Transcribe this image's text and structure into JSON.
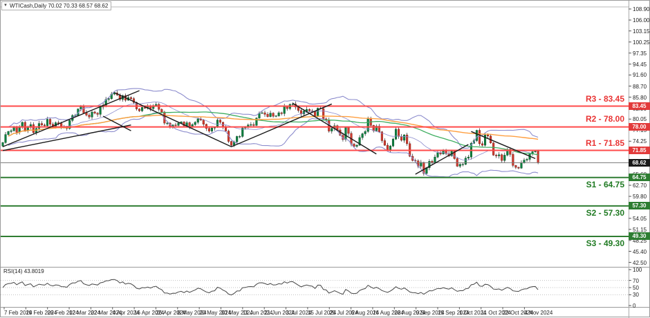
{
  "window": {
    "dropdown_icon": "triangle-down",
    "symbol_period": "WTICash,Daily",
    "ohlc_text": "70.02 70.33 68.57 68.62"
  },
  "colors": {
    "bull_candle": "#0d8040",
    "bull_border": "#0a5228",
    "bear_candle": "#d23b2f",
    "bear_border": "#7c1f16",
    "bollinger": "#8c8ccd",
    "sma_fast": "#3fae60",
    "sma_slow": "#ff9f40",
    "resistance_line": "#ff4a4a",
    "support_line": "#2f7d32",
    "current_price_line": "#777777",
    "trendline": "#1a1a1a",
    "resistance_badge": "#e23b3b",
    "support_badge": "#2e7d32",
    "current_badge": "#1a1a1a",
    "rsi_line": "#444444",
    "grid_dotted": "#c0c0c0",
    "separator": "#9a9a9a"
  },
  "levels": {
    "resistance": [
      {
        "name": "R3",
        "price": 83.45,
        "label": "R3 - 83.45"
      },
      {
        "name": "R2",
        "price": 78.0,
        "label": "R2 - 78.00"
      },
      {
        "name": "R1",
        "price": 71.85,
        "label": "R1 - 71.85"
      }
    ],
    "support": [
      {
        "name": "S1",
        "price": 64.75,
        "label": "S1 - 64.75"
      },
      {
        "name": "S2",
        "price": 57.3,
        "label": "S2 - 57.30"
      },
      {
        "name": "S3",
        "price": 49.3,
        "label": "S3 - 49.30"
      }
    ],
    "current_price": 68.62
  },
  "price_axis": {
    "ticks": [
      "108.90",
      "106.00",
      "103.15",
      "100.25",
      "97.35",
      "94.45",
      "91.60",
      "88.70",
      "85.80",
      "82.90",
      "80.05",
      "77.15",
      "74.25",
      "65.60",
      "62.70",
      "59.80",
      "54.05",
      "51.15",
      "48.25",
      "45.40",
      "42.50"
    ],
    "badges": [
      {
        "text": "83.45",
        "type": "resistance"
      },
      {
        "text": "78.00",
        "type": "resistance"
      },
      {
        "text": "71.85",
        "type": "resistance"
      },
      {
        "text": "68.62",
        "type": "current"
      },
      {
        "text": "64.75",
        "type": "support"
      },
      {
        "text": "57.30",
        "type": "support"
      },
      {
        "text": "49.30",
        "type": "support"
      }
    ]
  },
  "rsi_panel": {
    "label": "RSI(14) 43.8019",
    "scale_labels": [
      "100",
      "70",
      "50",
      "30",
      "0"
    ],
    "scale_values": [
      100,
      70,
      50,
      30,
      0
    ],
    "dotted_levels": [
      70,
      50,
      30
    ]
  },
  "time_axis": {
    "labels": [
      "7 Feb 2024",
      "19 Feb 2024",
      "29 Feb 2024",
      "12 Mar 2024",
      "22 Mar 2024",
      "4 Apr 2024",
      "16 Apr 2024",
      "26 Apr 2024",
      "8 May 2024",
      "20 May 2024",
      "30 May 2024",
      "11 Jun 2024",
      "21 Jun 2024",
      "3 Jul 2024",
      "15 Jul 2024",
      "25 Jul 2024",
      "6 Aug 2024",
      "16 Aug 2024",
      "28 Aug 2024",
      "9 Sep 2024",
      "19 Sep 2024",
      "1 Oct 2024",
      "11 Oct 2024",
      "23 Oct 2024",
      "4 Nov 2024"
    ]
  },
  "chart_data": {
    "type": "candlestick",
    "symbol": "WTICash",
    "timeframe": "Daily",
    "title": "WTICash,Daily 70.02 70.33 68.57 68.62",
    "ylim": [
      42.5,
      108.9
    ],
    "x_labels": [
      "7 Feb 2024",
      "19 Feb 2024",
      "29 Feb 2024",
      "12 Mar 2024",
      "22 Mar 2024",
      "4 Apr 2024",
      "16 Apr 2024",
      "26 Apr 2024",
      "8 May 2024",
      "20 May 2024",
      "30 May 2024",
      "11 Jun 2024",
      "21 Jun 2024",
      "3 Jul 2024",
      "15 Jul 2024",
      "25 Jul 2024",
      "6 Aug 2024",
      "16 Aug 2024",
      "28 Aug 2024",
      "9 Sep 2024",
      "19 Sep 2024",
      "1 Oct 2024",
      "11 Oct 2024",
      "23 Oct 2024",
      "4 Nov 2024"
    ],
    "first_open": 73.0,
    "closes": [
      73.9,
      76.0,
      76.8,
      77.0,
      77.9,
      76.6,
      78.0,
      79.2,
      77.0,
      77.9,
      78.6,
      76.5,
      77.6,
      78.9,
      78.5,
      78.3,
      80.0,
      78.7,
      78.2,
      79.1,
      78.9,
      78.0,
      77.9,
      77.6,
      79.7,
      81.0,
      81.0,
      82.7,
      83.5,
      81.7,
      81.1,
      80.6,
      81.9,
      81.6,
      81.3,
      83.2,
      83.7,
      85.2,
      85.4,
      86.6,
      86.9,
      86.4,
      85.2,
      86.2,
      85.0,
      85.7,
      85.4,
      84.4,
      82.7,
      82.2,
      83.1,
      82.9,
      83.4,
      82.8,
      83.6,
      83.9,
      82.6,
      81.9,
      79.0,
      79.0,
      78.1,
      78.5,
      78.4,
      79.0,
      79.3,
      78.3,
      79.1,
      78.0,
      78.6,
      79.2,
      80.1,
      79.8,
      78.7,
      77.6,
      76.9,
      77.7,
      77.9,
      79.8,
      79.2,
      77.9,
      76.9,
      74.2,
      73.2,
      74.1,
      75.5,
      75.5,
      77.7,
      77.9,
      78.5,
      78.6,
      78.4,
      80.3,
      81.6,
      81.7,
      81.3,
      80.7,
      81.6,
      80.8,
      80.9,
      81.7,
      81.5,
      83.4,
      82.8,
      83.9,
      84.0,
      83.2,
      82.3,
      81.4,
      82.1,
      82.6,
      82.2,
      82.0,
      80.8,
      82.9,
      82.8,
      80.1,
      79.8,
      76.9,
      77.6,
      78.3,
      77.2,
      75.8,
      74.7,
      77.9,
      76.3,
      73.5,
      72.9,
      73.2,
      75.2,
      76.2,
      76.8,
      80.1,
      78.4,
      77.0,
      78.2,
      76.7,
      74.4,
      73.2,
      71.9,
      73.0,
      74.8,
      77.4,
      75.5,
      74.5,
      75.9,
      73.6,
      70.3,
      69.2,
      69.1,
      67.7,
      68.7,
      65.8,
      67.3,
      69.0,
      68.7,
      70.1,
      71.2,
      70.9,
      71.9,
      71.0,
      70.4,
      71.6,
      69.7,
      67.7,
      68.2,
      68.2,
      69.8,
      70.1,
      73.7,
      74.4,
      77.1,
      73.6,
      73.2,
      75.9,
      75.6,
      73.8,
      70.6,
      70.4,
      70.7,
      69.2,
      70.6,
      72.1,
      70.8,
      67.9,
      67.4,
      67.2,
      68.6,
      69.3,
      69.5,
      70.9,
      71.5,
      71.6,
      68.62
    ],
    "indicators": {
      "bollinger": {
        "period": 20,
        "deviation": 2.0
      },
      "sma_fast": {
        "period": 50
      },
      "sma_slow": {
        "period": 100
      },
      "rsi": {
        "period": 14,
        "last_value": "43.8019"
      }
    },
    "support_resistance": {
      "R3": 83.45,
      "R2": 78.0,
      "R1": 71.85,
      "S1": 64.75,
      "S2": 57.3,
      "S3": 49.3
    },
    "current_price": 68.62,
    "trendlines": [
      {
        "b1": 0,
        "p1": 72.8,
        "b2": 49,
        "p2": 87.5
      },
      {
        "b1": 0,
        "p1": 71.8,
        "b2": 46,
        "p2": 78.5
      },
      {
        "b1": 36,
        "p1": 80.8,
        "b2": 46,
        "p2": 77.0
      },
      {
        "b1": 40,
        "p1": 87.0,
        "b2": 82,
        "p2": 72.8
      },
      {
        "b1": 82,
        "p1": 72.8,
        "b2": 118,
        "p2": 84.0
      },
      {
        "b1": 104,
        "p1": 84.2,
        "b2": 134,
        "p2": 70.9
      },
      {
        "b1": 148,
        "p1": 65.6,
        "b2": 167,
        "p2": 73.4
      },
      {
        "b1": 168,
        "p1": 76.8,
        "b2": 191,
        "p2": 69.7
      }
    ]
  }
}
